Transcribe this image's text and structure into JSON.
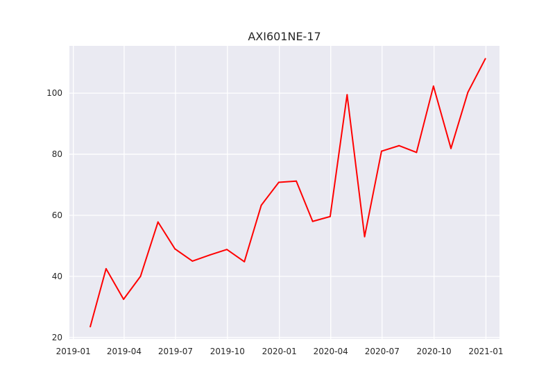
{
  "chart_data": {
    "type": "line",
    "title": "AXI601NE-17",
    "xlabel": "",
    "ylabel": "",
    "grid": true,
    "colors": {
      "background": "#eaeaf2",
      "grid": "#ffffff",
      "line": "#ff0000"
    },
    "xlim": [
      "2018-12-25",
      "2021-01-25"
    ],
    "ylim": [
      19.5,
      115.5
    ],
    "x_ticks": [
      {
        "value": "2019-01-01",
        "label": "2019-01"
      },
      {
        "value": "2019-04-01",
        "label": "2019-04"
      },
      {
        "value": "2019-07-01",
        "label": "2019-07"
      },
      {
        "value": "2019-10-01",
        "label": "2019-10"
      },
      {
        "value": "2020-01-01",
        "label": "2020-01"
      },
      {
        "value": "2020-04-01",
        "label": "2020-04"
      },
      {
        "value": "2020-07-01",
        "label": "2020-07"
      },
      {
        "value": "2020-10-01",
        "label": "2020-10"
      },
      {
        "value": "2021-01-01",
        "label": "2021-01"
      }
    ],
    "y_ticks": [
      {
        "value": 20,
        "label": "20"
      },
      {
        "value": 40,
        "label": "40"
      },
      {
        "value": 60,
        "label": "60"
      },
      {
        "value": 80,
        "label": "80"
      },
      {
        "value": 100,
        "label": "100"
      }
    ],
    "series": [
      {
        "x": [
          "2019-01-31",
          "2019-02-28",
          "2019-03-31",
          "2019-04-30",
          "2019-05-31",
          "2019-06-30",
          "2019-07-31",
          "2019-08-31",
          "2019-09-30",
          "2019-10-31",
          "2019-11-30",
          "2019-12-31",
          "2020-01-31",
          "2020-02-29",
          "2020-03-31",
          "2020-04-30",
          "2020-05-31",
          "2020-06-30",
          "2020-07-31",
          "2020-08-31",
          "2020-09-30",
          "2020-10-31",
          "2020-11-30",
          "2020-12-31"
        ],
        "values": [
          23.5,
          42.5,
          32.5,
          40.0,
          57.8,
          49.0,
          45.0,
          47.0,
          48.8,
          44.8,
          63.3,
          70.8,
          71.2,
          58.0,
          59.6,
          99.5,
          53.0,
          81.0,
          82.8,
          80.6,
          102.3,
          81.9,
          100.3,
          111.3
        ]
      }
    ]
  }
}
